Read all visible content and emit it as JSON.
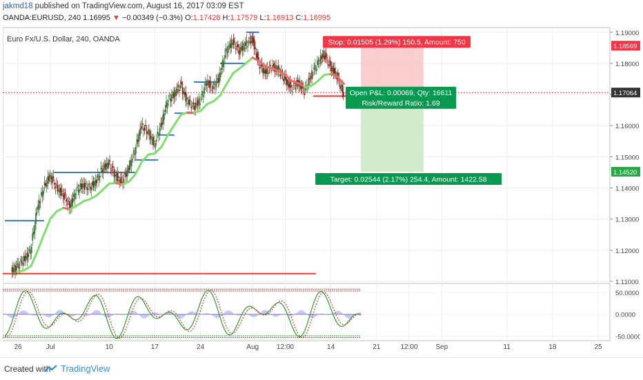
{
  "header": {
    "user": "jakmd18",
    "published": "published on TradingView.com, August 16, 2017 03:09 EST",
    "symbol": "OANDA:EURUSD, 240",
    "last": "1.16995",
    "change": "−0.00349 (−0.3%)",
    "o_label": "O:",
    "o": "1.17428",
    "h_label": "H:",
    "h": "1.17579",
    "l_label": "L:",
    "l": "1.16913",
    "c_label": "C:",
    "c": "1.16995"
  },
  "colors": {
    "up_candle": "#3a7a3a",
    "down_candle": "#8b1a1a",
    "green_ma": "#7ee06b",
    "red_ma": "#f06a6a",
    "step_line": "#3a78c8",
    "stop_zone": "#f8c6c6",
    "target_zone": "#cde9c8",
    "badge_red": "#f23645",
    "badge_green": "#089950",
    "price_badge_red": "#f23645",
    "price_badge_dark": "#333333",
    "price_badge_green": "#28a745"
  },
  "chart_data": {
    "type": "candlestick",
    "title": "Euro Fx/U.S. Dollar, 240, OANDA",
    "ylim": [
      1.11,
      1.1915
    ],
    "yticks": [
      "1.19000",
      "1.18000",
      "1.17000",
      "1.16000",
      "1.15000",
      "1.14000",
      "1.13000",
      "1.12000",
      "1.11000"
    ],
    "ytick_values": [
      1.19,
      1.18,
      1.17,
      1.16,
      1.15,
      1.14,
      1.13,
      1.12,
      1.11
    ],
    "xticks": [
      "26",
      "Jul",
      "10",
      "17",
      "24",
      "Aug",
      "12:00",
      "14",
      "21",
      "12:00",
      "Sep",
      "11",
      "18",
      "25"
    ],
    "xtick_positions_day": [
      0,
      5,
      14,
      21,
      28,
      36,
      41,
      48,
      55,
      60,
      65,
      75,
      82,
      89
    ],
    "close_series_day": [
      [
        0,
        1.115
      ],
      [
        1,
        1.117
      ],
      [
        2,
        1.12
      ],
      [
        3,
        1.133
      ],
      [
        4,
        1.14
      ],
      [
        5,
        1.144
      ],
      [
        6,
        1.14
      ],
      [
        7,
        1.138
      ],
      [
        8,
        1.134
      ],
      [
        9,
        1.139
      ],
      [
        10,
        1.141
      ],
      [
        11,
        1.14
      ],
      [
        12,
        1.142
      ],
      [
        13,
        1.146
      ],
      [
        14,
        1.148
      ],
      [
        15,
        1.144
      ],
      [
        16,
        1.142
      ],
      [
        17,
        1.146
      ],
      [
        18,
        1.152
      ],
      [
        19,
        1.16
      ],
      [
        20,
        1.158
      ],
      [
        21,
        1.154
      ],
      [
        22,
        1.16
      ],
      [
        23,
        1.168
      ],
      [
        24,
        1.17
      ],
      [
        25,
        1.173
      ],
      [
        26,
        1.168
      ],
      [
        27,
        1.166
      ],
      [
        28,
        1.168
      ],
      [
        29,
        1.174
      ],
      [
        30,
        1.172
      ],
      [
        31,
        1.176
      ],
      [
        32,
        1.184
      ],
      [
        33,
        1.187
      ],
      [
        34,
        1.184
      ],
      [
        35,
        1.186
      ],
      [
        36,
        1.188
      ],
      [
        37,
        1.18
      ],
      [
        38,
        1.177
      ],
      [
        39,
        1.179
      ],
      [
        40,
        1.178
      ],
      [
        41,
        1.175
      ],
      [
        42,
        1.172
      ],
      [
        43,
        1.174
      ],
      [
        44,
        1.171
      ],
      [
        45,
        1.176
      ],
      [
        46,
        1.18
      ],
      [
        47,
        1.183
      ],
      [
        48,
        1.179
      ],
      [
        49,
        1.176
      ],
      [
        50,
        1.17
      ]
    ],
    "indicator": {
      "ylim": [
        -60,
        70
      ],
      "yticks": [
        "50.0000",
        "0.0000",
        "-50.0000"
      ],
      "ytick_values": [
        50,
        0,
        -50
      ]
    },
    "price_labels": {
      "stop": "1.18569",
      "current": "1.17064",
      "target": "1.14520"
    },
    "price_label_values": {
      "stop": 1.18569,
      "current": 1.17064,
      "target": 1.1452
    },
    "position": {
      "stop_text": "Stop: 0.01505 (1.29%) 150.5, Amount: 750",
      "pnl_text": "Open P&L: 0.00069, Qty: 16611",
      "rr_text": "Risk/Reward Ratio: 1.69",
      "target_text": "Target: 0.02544 (2.17%) 254.4, Amount: 1422.58"
    }
  },
  "footer": {
    "created": "Created with",
    "brand": "TradingView"
  }
}
